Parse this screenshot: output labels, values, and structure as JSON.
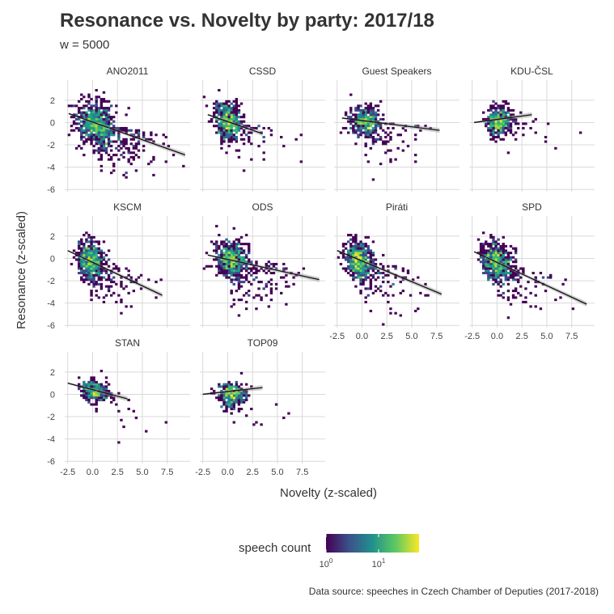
{
  "title": "Resonance vs. Novelty by party: 2017/18",
  "subtitle": "w = 5000",
  "caption": "Data source: speeches in Czech Chamber of Deputies (2017-2018)",
  "legend": {
    "title": "speech count",
    "tick_labels": [
      "10",
      "10"
    ],
    "tick_exponents": [
      "0",
      "1"
    ],
    "colors": [
      "#440154",
      "#3b528b",
      "#21918c",
      "#5ec962",
      "#fde725"
    ]
  },
  "chart_data": {
    "type": "heatmap",
    "xlabel": "Novelty (z-scaled)",
    "ylabel": "Resonance (z-scaled)",
    "xlim": [
      -2.8,
      9.8
    ],
    "ylim": [
      -6.2,
      3.8
    ],
    "x_ticks": [
      -2.5,
      0.0,
      2.5,
      5.0,
      7.5
    ],
    "x_tick_labels": [
      "-2.5",
      "0.0",
      "2.5",
      "5.0",
      "7.5"
    ],
    "y_ticks": [
      2,
      0,
      -2,
      -4,
      -6
    ],
    "y_tick_labels": [
      "2",
      "0",
      "-2",
      "-4",
      "-6"
    ],
    "grid": true,
    "legend_position": "bottom",
    "panels": [
      {
        "name": "ANO2011",
        "fit": {
          "x": [
            -2.4,
            9.3
          ],
          "y": [
            0.8,
            -2.9
          ]
        }
      },
      {
        "name": "CSSD",
        "fit": {
          "x": [
            -2.0,
            3.5
          ],
          "y": [
            0.7,
            -1.0
          ]
        }
      },
      {
        "name": "Guest Speakers",
        "fit": {
          "x": [
            -2.0,
            7.8
          ],
          "y": [
            0.4,
            -0.7
          ]
        }
      },
      {
        "name": "KDU-ČSL",
        "fit": {
          "x": [
            -2.3,
            3.5
          ],
          "y": [
            0.0,
            0.7
          ]
        }
      },
      {
        "name": "KSCM",
        "fit": {
          "x": [
            -2.5,
            7.0
          ],
          "y": [
            0.7,
            -3.3
          ]
        }
      },
      {
        "name": "ODS",
        "fit": {
          "x": [
            -2.0,
            9.2
          ],
          "y": [
            0.3,
            -1.9
          ]
        }
      },
      {
        "name": "Piráti",
        "fit": {
          "x": [
            -2.5,
            8.0
          ],
          "y": [
            0.7,
            -3.2
          ]
        }
      },
      {
        "name": "SPD",
        "fit": {
          "x": [
            -2.3,
            9.0
          ],
          "y": [
            0.6,
            -4.1
          ]
        }
      },
      {
        "name": "STAN",
        "fit": {
          "x": [
            -2.5,
            3.5
          ],
          "y": [
            1.0,
            -0.4
          ]
        }
      },
      {
        "name": "TOP09",
        "fit": {
          "x": [
            -2.5,
            3.5
          ],
          "y": [
            0.0,
            0.6
          ]
        }
      }
    ]
  }
}
